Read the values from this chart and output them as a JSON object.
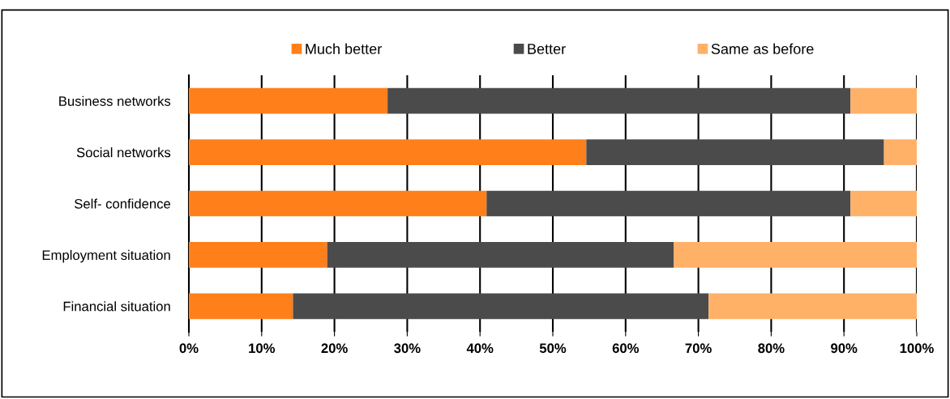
{
  "chart_data": {
    "type": "bar",
    "orientation": "horizontal",
    "stacked": true,
    "categories": [
      "Business networks",
      "Social networks",
      "Self- confidence",
      "Employment situation",
      "Financial situation"
    ],
    "series": [
      {
        "name": "Much better",
        "color": "#ff7f1a",
        "values": [
          27.3,
          54.6,
          40.9,
          19.0,
          14.3
        ]
      },
      {
        "name": "Better",
        "color": "#4b4b4b",
        "values": [
          63.6,
          40.9,
          50.0,
          47.6,
          57.1
        ]
      },
      {
        "name": "Same as before",
        "color": "#ffb168",
        "values": [
          9.1,
          4.5,
          9.1,
          33.4,
          28.6
        ]
      }
    ],
    "xlim": [
      0,
      100
    ],
    "xticks": [
      {
        "value": 0,
        "label": "0%"
      },
      {
        "value": 10,
        "label": "10%"
      },
      {
        "value": 20,
        "label": "20%"
      },
      {
        "value": 30,
        "label": "30%"
      },
      {
        "value": 40,
        "label": "40%"
      },
      {
        "value": 50,
        "label": "50%"
      },
      {
        "value": 60,
        "label": "60%"
      },
      {
        "value": 70,
        "label": "70%"
      },
      {
        "value": 80,
        "label": "80%"
      },
      {
        "value": 90,
        "label": "90%"
      },
      {
        "value": 100,
        "label": "100%"
      }
    ],
    "grid": "x",
    "legend": "top"
  }
}
